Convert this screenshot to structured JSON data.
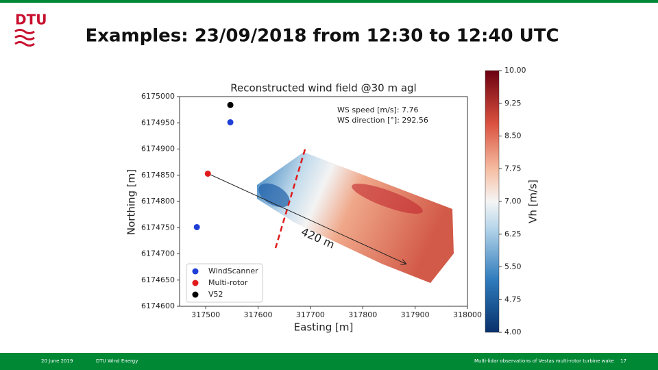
{
  "slide": {
    "logo": "DTU",
    "title": "Examples: 23/09/2018 from 12:30 to 12:40 UTC",
    "footer": {
      "date": "20 June 2019",
      "department": "DTU Wind Energy",
      "topic": "Multi-lidar observations of Vestas multi-rotor turbine wake",
      "page": "17"
    }
  },
  "chart_data": {
    "type": "scatter",
    "title": "Reconstructed wind field @30 m agl",
    "x_label": "Easting [m]",
    "y_label": "Northing [m]",
    "xlim": [
      317450,
      318000
    ],
    "xticks": [
      317500,
      317600,
      317700,
      317800,
      317900,
      318000
    ],
    "ylim": [
      6174600,
      6175000
    ],
    "yticks": [
      6174600,
      6174650,
      6174700,
      6174750,
      6174800,
      6174850,
      6174900,
      6174950,
      6175000
    ],
    "series": [
      {
        "name": "WindScanner",
        "color": "#1f3fd6",
        "x": [
          317547,
          317483
        ],
        "y": [
          6174951,
          6174751
        ]
      },
      {
        "name": "Multi-rotor",
        "color": "#e01b1b",
        "x": [
          317504
        ],
        "y": [
          6174853
        ]
      },
      {
        "name": "V52",
        "color": "#000000",
        "x": [
          317547
        ],
        "y": [
          6174984
        ]
      }
    ],
    "annotations": [
      "WS speed [m/s]: 7.76",
      "WS direction [°]: 292.56",
      "420 m"
    ],
    "colorbar": {
      "label": "Vh [m/s]",
      "lim": [
        4,
        10
      ],
      "ticks": [
        {
          "value": 4,
          "label": "4.00"
        },
        {
          "value": 4.75,
          "label": "4.75"
        },
        {
          "value": 5.5,
          "label": "5.50"
        },
        {
          "value": 6.25,
          "label": "6.25"
        },
        {
          "value": 7,
          "label": "7.00"
        },
        {
          "value": 7.75,
          "label": "7.75"
        },
        {
          "value": 8.5,
          "label": "8.50"
        },
        {
          "value": 9.25,
          "label": "9.25"
        },
        {
          "value": 10,
          "label": "10.00"
        }
      ]
    }
  }
}
